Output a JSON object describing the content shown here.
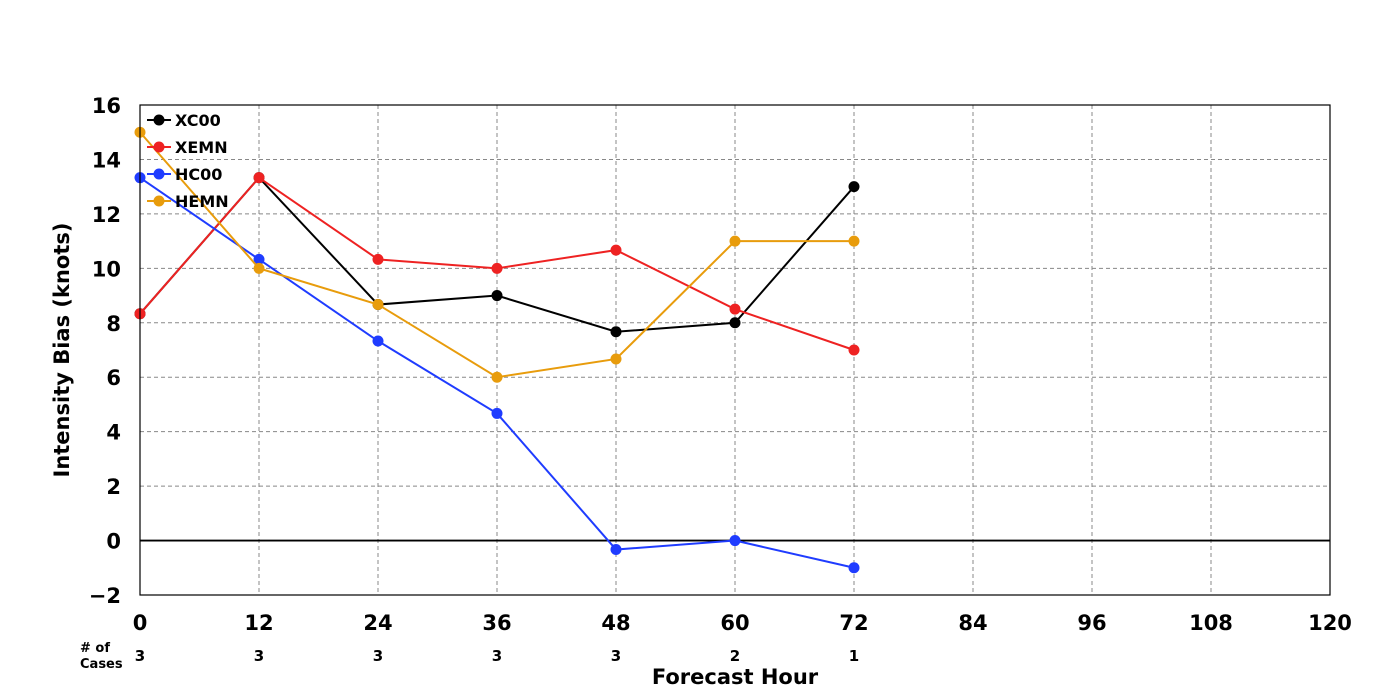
{
  "chart_data": {
    "type": "line",
    "xlabel": "Forecast Hour",
    "ylabel": "Intensity Bias (knots)",
    "xlim": [
      0,
      120
    ],
    "ylim": [
      -2,
      16
    ],
    "x_ticks": [
      "0",
      "12",
      "24",
      "36",
      "48",
      "60",
      "72",
      "84",
      "96",
      "108",
      "120"
    ],
    "y_ticks": [
      "−2",
      "0",
      "2",
      "4",
      "6",
      "8",
      "10",
      "12",
      "14",
      "16"
    ],
    "grid": true,
    "legend_position": "top-left",
    "x": [
      0,
      12,
      24,
      36,
      48,
      60,
      72
    ],
    "series": [
      {
        "name": "XC00",
        "color": "#000000",
        "values": [
          8.33,
          13.33,
          8.67,
          9.0,
          7.67,
          8.0,
          13.0
        ]
      },
      {
        "name": "XEMN",
        "color": "#ee2222",
        "values": [
          8.33,
          13.33,
          10.33,
          10.0,
          10.67,
          8.5,
          7.0
        ]
      },
      {
        "name": "HC00",
        "color": "#1f3cff",
        "values": [
          13.33,
          10.33,
          7.33,
          4.67,
          -0.33,
          0.0,
          -1.0
        ]
      },
      {
        "name": "HEMN",
        "color": "#e89c0c",
        "values": [
          15.0,
          10.0,
          8.67,
          6.0,
          6.67,
          11.0,
          11.0
        ]
      }
    ],
    "cases": {
      "label_line1": "# of",
      "label_line2": "Cases",
      "x": [
        0,
        12,
        24,
        36,
        48,
        60,
        72
      ],
      "values": [
        "3",
        "3",
        "3",
        "3",
        "3",
        "2",
        "1"
      ]
    }
  }
}
